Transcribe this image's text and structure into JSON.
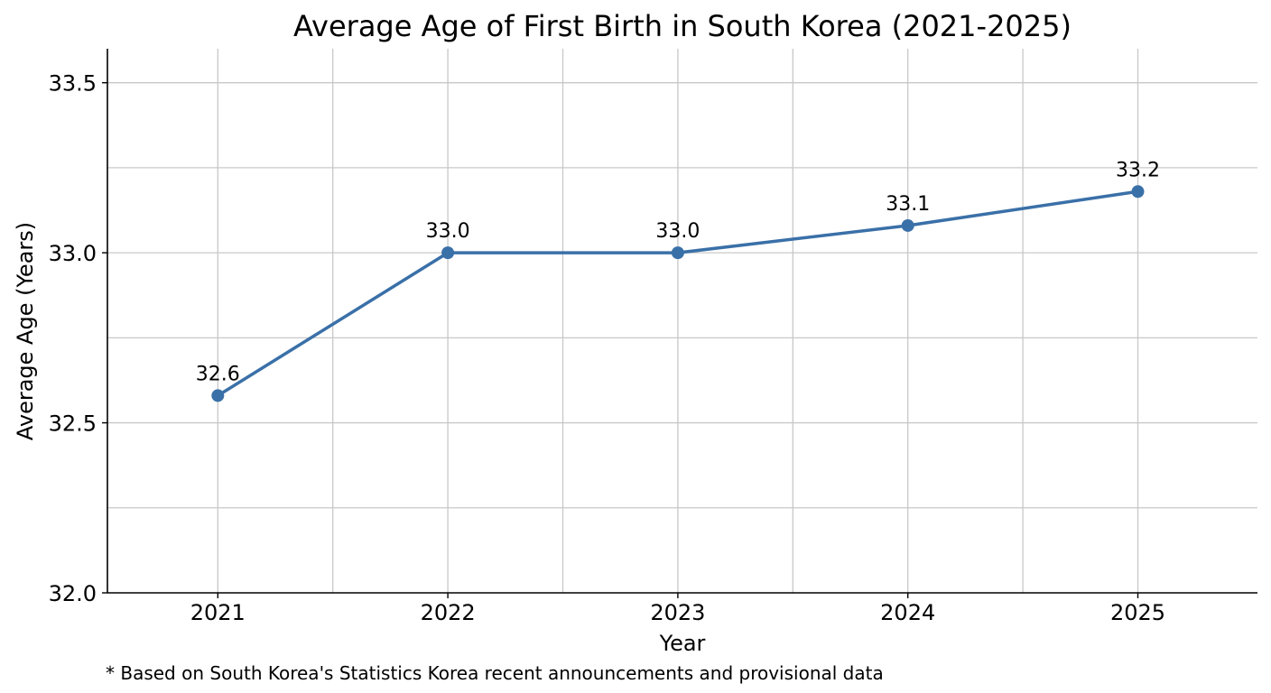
{
  "chart_data": {
    "type": "line",
    "title": "Average Age of First Birth in South Korea (2021-2025)",
    "xlabel": "Year",
    "ylabel": "Average Age (Years)",
    "footnote": "* Based on South Korea's Statistics Korea recent announcements and provisional data",
    "categories": [
      "2021",
      "2022",
      "2023",
      "2024",
      "2025"
    ],
    "series": [
      {
        "values": [
          32.58,
          33.0,
          33.0,
          33.08,
          33.18
        ],
        "labels": [
          "32.6",
          "33.0",
          "33.0",
          "33.1",
          "33.2"
        ],
        "color": "#3a70a8"
      }
    ],
    "ylim": [
      32.0,
      33.6
    ],
    "xlim": [
      2020.52,
      2025.52
    ],
    "yticks": [
      32.0,
      32.5,
      33.0,
      33.5
    ],
    "ytick_labels": [
      "32.0",
      "32.5",
      "33.0",
      "33.5"
    ],
    "minor_yticks": [
      32.25,
      32.75,
      33.25
    ],
    "minor_xticks": [
      2021.5,
      2022.5,
      2023.5,
      2024.5
    ],
    "grid": true,
    "legend": "none",
    "colors": {
      "line": "#3a70a8",
      "grid": "#c8c8c8",
      "axis": "#000000"
    }
  }
}
